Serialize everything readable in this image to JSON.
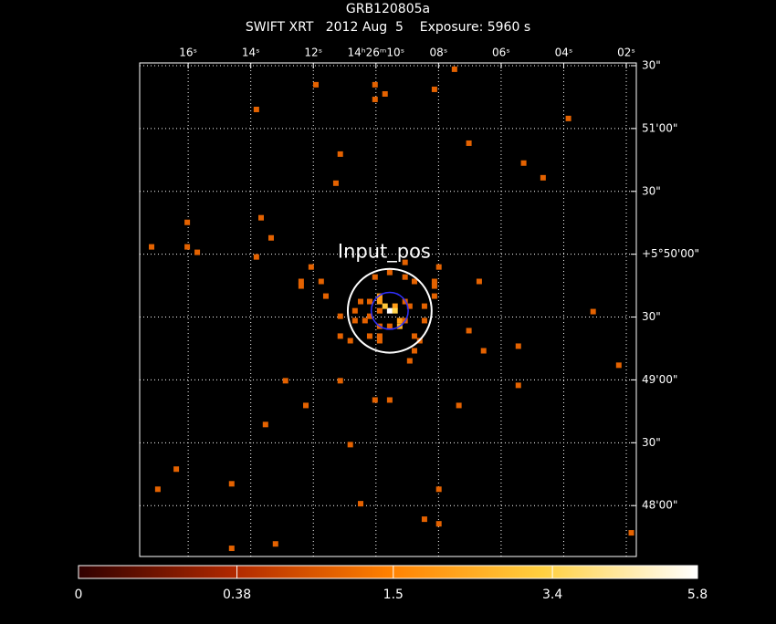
{
  "chart_data": {
    "type": "skymap",
    "title": "GRB120805a",
    "subtitle": "SWIFT XRT   2012 Aug  5    Exposure: 5960 s",
    "xlim": [
      17.55,
      1.68
    ],
    "xticks": [
      {
        "value": 16,
        "label": "16ˢ"
      },
      {
        "value": 14,
        "label": "14ˢ"
      },
      {
        "value": 12,
        "label": "12ˢ"
      },
      {
        "value": 10,
        "label": "14ʰ26ᵐ10ˢ"
      },
      {
        "value": 8,
        "label": "08ˢ"
      },
      {
        "value": 6,
        "label": "06ˢ"
      },
      {
        "value": 4,
        "label": "04ˢ"
      },
      {
        "value": 2,
        "label": "02ˢ"
      }
    ],
    "ylim": [
      2855.7,
      3091.3
    ],
    "yticks": [
      {
        "value": 3090,
        "label": "30\""
      },
      {
        "value": 3060,
        "label": "51'00\""
      },
      {
        "value": 3030,
        "label": "30\""
      },
      {
        "value": 3000,
        "label": "+5°50'00\""
      },
      {
        "value": 2970,
        "label": "30\""
      },
      {
        "value": 2940,
        "label": "49'00\""
      },
      {
        "value": 2910,
        "label": "30\""
      },
      {
        "value": 2880,
        "label": "48'00\""
      }
    ],
    "grid": true,
    "photons": {
      "ra": [
        7.49,
        11.92,
        10.03,
        9.71,
        8.13,
        10.03,
        13.82,
        3.85,
        7.03,
        11.14,
        5.28,
        4.66,
        11.28,
        13.67,
        16.03,
        13.35,
        17.17,
        16.03,
        15.71,
        13.82,
        9.07,
        7.99,
        12.07,
        12.39,
        12.39,
        11.75,
        8.13,
        8.13,
        6.7,
        11.6,
        8.13,
        9.56,
        9.07,
        10.03,
        8.77,
        9.88,
        9.88,
        10.49,
        10.2,
        9.07,
        9.39,
        8.92,
        8.45,
        10.67,
        9.88,
        9.56,
        9.39,
        9.71,
        11.14,
        10.2,
        10.67,
        10.35,
        9.24,
        8.45,
        9.88,
        9.56,
        9.07,
        9.24,
        7.03,
        11.14,
        10.2,
        9.88,
        8.77,
        10.82,
        9.88,
        8.6,
        6.56,
        5.45,
        8.92,
        8.77,
        2.24,
        12.89,
        11.14,
        5.45,
        10.03,
        9.56,
        12.24,
        7.35,
        13.53,
        10.82,
        16.38,
        14.61,
        16.97,
        7.99,
        10.49,
        8.45,
        7.99,
        14.61,
        13.21,
        1.84,
        3.06
      ],
      "dec": [
        3088.3,
        3080.9,
        3080.9,
        3076.5,
        3078.7,
        3073.9,
        3069.1,
        3064.8,
        3053.0,
        3047.8,
        3043.5,
        3036.5,
        3033.9,
        3017.4,
        3015.2,
        3007.8,
        3003.5,
        3003.5,
        3000.9,
        2998.7,
        2996.1,
        2993.9,
        2993.9,
        2987.0,
        2984.8,
        2987.0,
        2987.0,
        2984.8,
        2987.0,
        2980.0,
        2980.0,
        2991.3,
        2989.1,
        2989.1,
        2987.0,
        2980.0,
        2977.4,
        2977.4,
        2977.4,
        2977.4,
        2975.2,
        2975.2,
        2975.2,
        2973.0,
        2973.0,
        2973.0,
        2973.0,
        2975.2,
        2970.4,
        2970.4,
        2968.3,
        2968.3,
        2968.3,
        2968.3,
        2965.6,
        2965.6,
        2968.3,
        2965.6,
        2963.5,
        2960.9,
        2960.9,
        2960.9,
        2960.9,
        2958.7,
        2958.7,
        2958.7,
        2953.9,
        2956.1,
        2949.1,
        2953.9,
        2947.0,
        2939.6,
        2939.6,
        2937.4,
        2930.4,
        2930.4,
        2927.8,
        2927.8,
        2918.7,
        2909.1,
        2897.4,
        2890.4,
        2887.8,
        2887.8,
        2880.9,
        2873.5,
        2871.3,
        2859.6,
        2861.7,
        2867.0,
        2972.6
      ],
      "counts": [
        1,
        1,
        1,
        1,
        1,
        1,
        1,
        1,
        1,
        1,
        1,
        1,
        1,
        1,
        1,
        1,
        1,
        1,
        1,
        1,
        1,
        1,
        1,
        1,
        1,
        1,
        1,
        1,
        1,
        1,
        1,
        1,
        1,
        1,
        1,
        2,
        2,
        1,
        1,
        1,
        2,
        1,
        1,
        1,
        1,
        5.8,
        3.4,
        3,
        1,
        1,
        1,
        1,
        2,
        1,
        1,
        1,
        1,
        2.5,
        1,
        1,
        1,
        1,
        1,
        1,
        1,
        1,
        1,
        1,
        1,
        1,
        1,
        1,
        1,
        1,
        1,
        1,
        1,
        1,
        1,
        1,
        1,
        1,
        1,
        1,
        1,
        1,
        1,
        1,
        1,
        1,
        1
      ]
    },
    "region": {
      "label": "Input_pos",
      "ra": 9.56,
      "dec": 2973.0,
      "radius_arcsec": 20,
      "color": "#ffffff"
    },
    "marker": {
      "ra": 9.56,
      "dec": 2973.0,
      "radius_arcsec": 4,
      "color": "#3030ff"
    },
    "colorbar": {
      "lim": [
        0,
        5.8
      ],
      "ticks": [
        0,
        0.38,
        1.5,
        3.4,
        5.8
      ],
      "scale": "sqrt",
      "colormap": [
        "#300000",
        "#b02800",
        "#ff8000",
        "#ffd040",
        "#ffffff"
      ]
    }
  }
}
